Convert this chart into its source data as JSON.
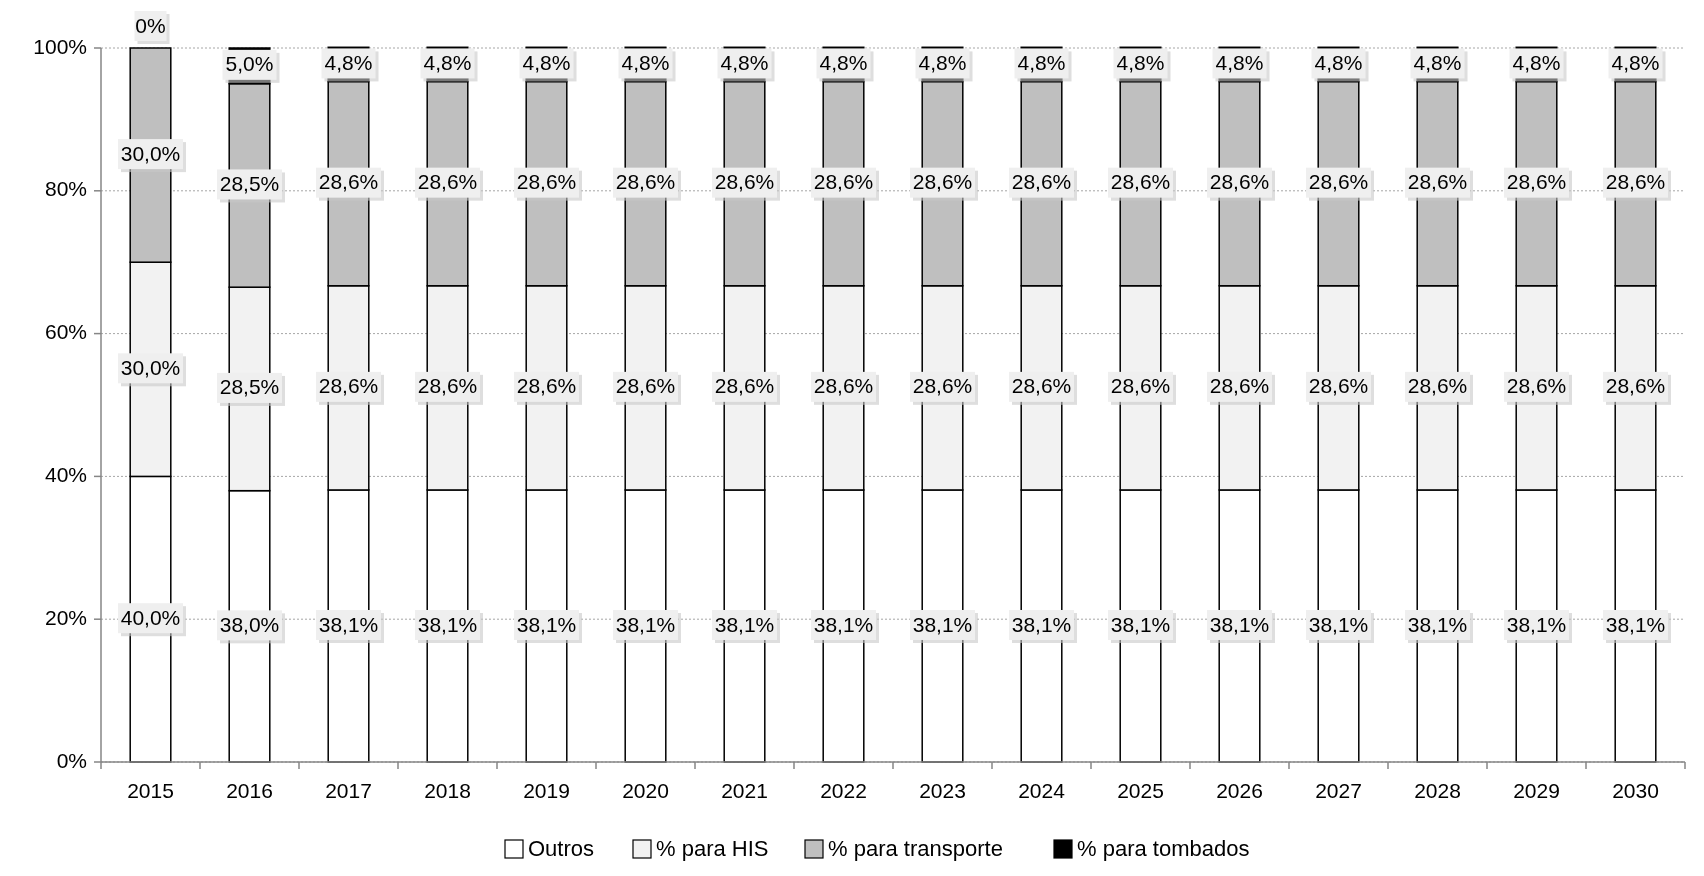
{
  "chart_data": {
    "type": "bar",
    "stacked": true,
    "categories": [
      "2015",
      "2016",
      "2017",
      "2018",
      "2019",
      "2020",
      "2021",
      "2022",
      "2023",
      "2024",
      "2025",
      "2026",
      "2027",
      "2028",
      "2029",
      "2030"
    ],
    "series": [
      {
        "name": "Outros",
        "color": "#ffffff",
        "values": [
          40,
          38,
          38.1,
          38.1,
          38.1,
          38.1,
          38.1,
          38.1,
          38.1,
          38.1,
          38.1,
          38.1,
          38.1,
          38.1,
          38.1,
          38.1
        ],
        "value_labels": [
          "40,0%",
          "38,0%",
          "38,1%",
          "38,1%",
          "38,1%",
          "38,1%",
          "38,1%",
          "38,1%",
          "38,1%",
          "38,1%",
          "38,1%",
          "38,1%",
          "38,1%",
          "38,1%",
          "38,1%",
          "38,1%"
        ]
      },
      {
        "name": "% para HIS",
        "color": "#f2f2f2",
        "values": [
          30,
          28.5,
          28.6,
          28.6,
          28.6,
          28.6,
          28.6,
          28.6,
          28.6,
          28.6,
          28.6,
          28.6,
          28.6,
          28.6,
          28.6,
          28.6
        ],
        "value_labels": [
          "30,0%",
          "28,5%",
          "28,6%",
          "28,6%",
          "28,6%",
          "28,6%",
          "28,6%",
          "28,6%",
          "28,6%",
          "28,6%",
          "28,6%",
          "28,6%",
          "28,6%",
          "28,6%",
          "28,6%",
          "28,6%"
        ]
      },
      {
        "name": "% para transporte",
        "color": "#bfbfbf",
        "values": [
          30,
          28.5,
          28.6,
          28.6,
          28.6,
          28.6,
          28.6,
          28.6,
          28.6,
          28.6,
          28.6,
          28.6,
          28.6,
          28.6,
          28.6,
          28.6
        ],
        "value_labels": [
          "30,0%",
          "28,5%",
          "28,6%",
          "28,6%",
          "28,6%",
          "28,6%",
          "28,6%",
          "28,6%",
          "28,6%",
          "28,6%",
          "28,6%",
          "28,6%",
          "28,6%",
          "28,6%",
          "28,6%",
          "28,6%"
        ]
      },
      {
        "name": "% para tombados",
        "color": "#000000",
        "values": [
          0,
          5,
          4.8,
          4.8,
          4.8,
          4.8,
          4.8,
          4.8,
          4.8,
          4.8,
          4.8,
          4.8,
          4.8,
          4.8,
          4.8,
          4.8
        ],
        "value_labels": [
          "0%",
          "5,0%",
          "4,8%",
          "4,8%",
          "4,8%",
          "4,8%",
          "4,8%",
          "4,8%",
          "4,8%",
          "4,8%",
          "4,8%",
          "4,8%",
          "4,8%",
          "4,8%",
          "4,8%",
          "4,8%"
        ]
      }
    ],
    "ylim": [
      0,
      100
    ],
    "yticks": [
      {
        "value": 0,
        "label": "0%"
      },
      {
        "value": 20,
        "label": "20%"
      },
      {
        "value": 40,
        "label": "40%"
      },
      {
        "value": 60,
        "label": "60%"
      },
      {
        "value": 80,
        "label": "80%"
      },
      {
        "value": 100,
        "label": "100%"
      }
    ],
    "grid": "y",
    "legend": "bottom"
  }
}
